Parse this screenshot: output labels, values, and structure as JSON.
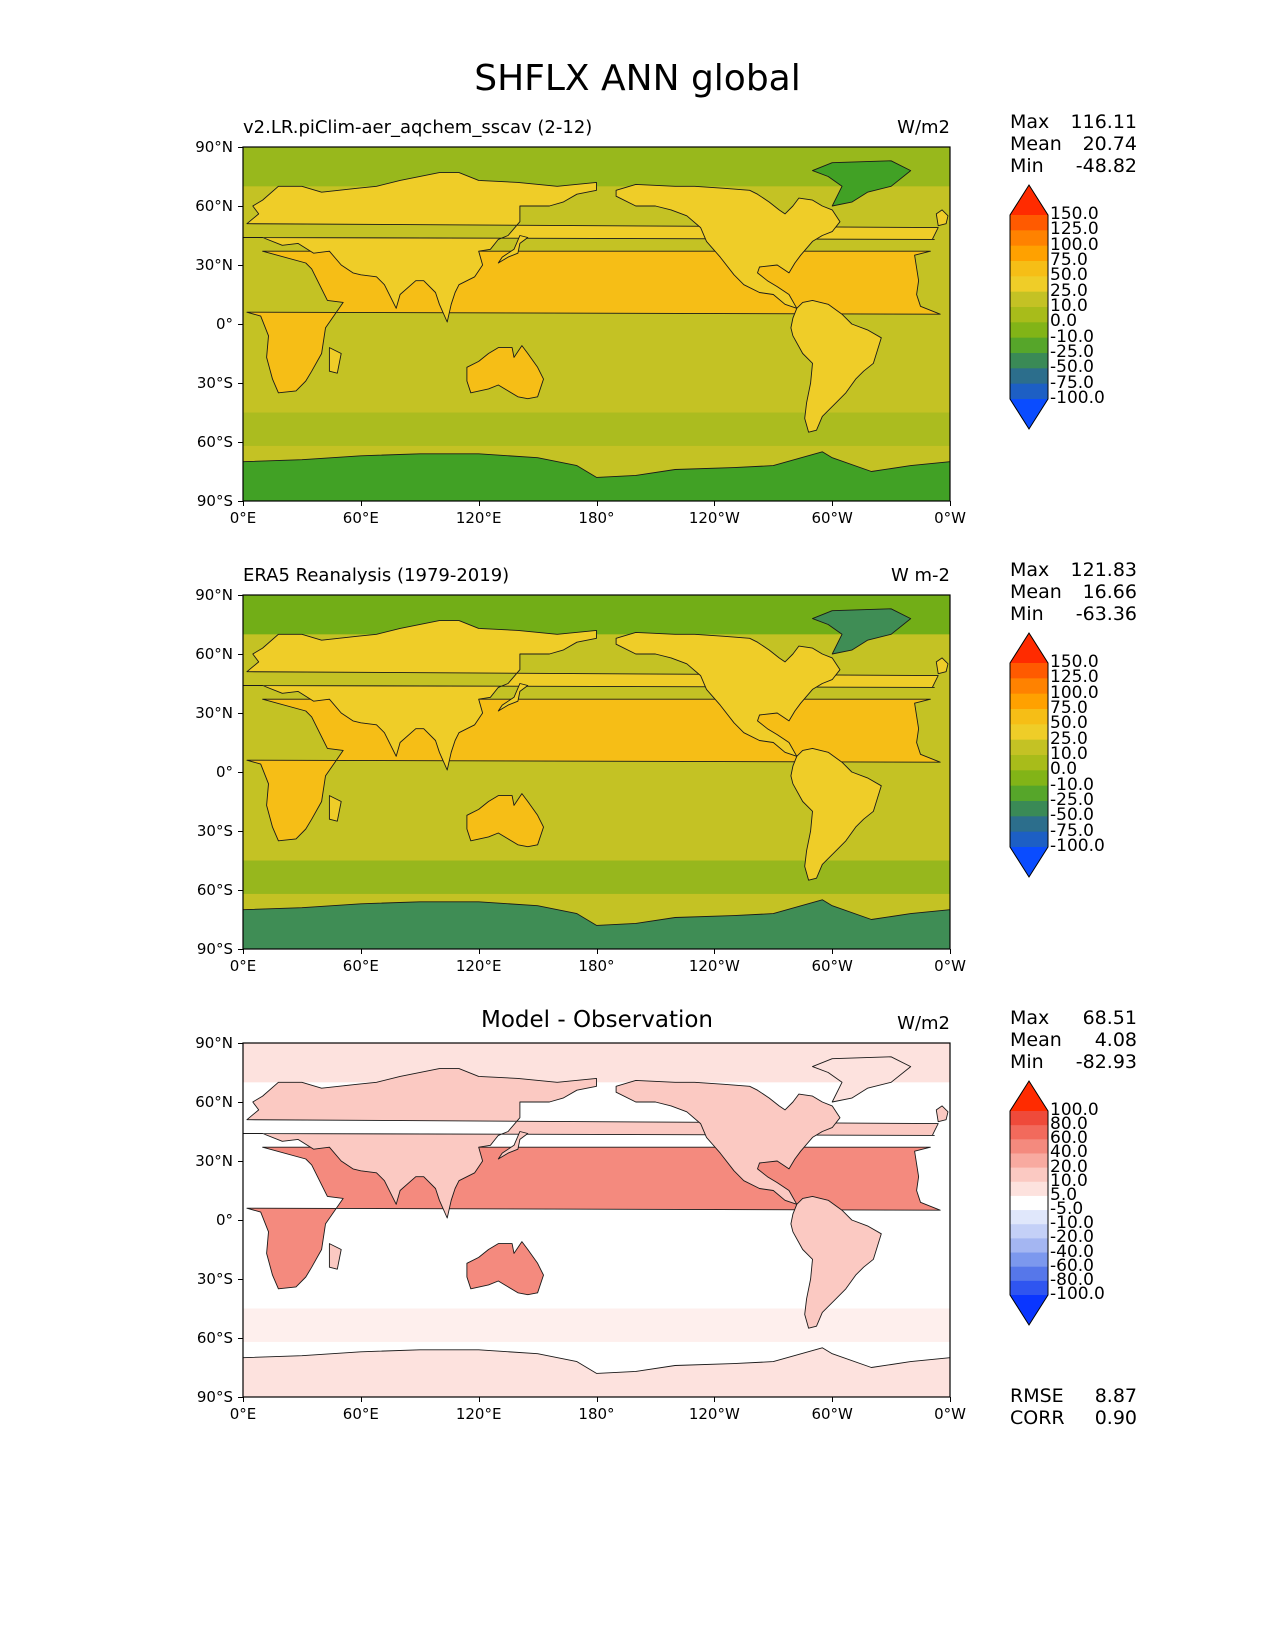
{
  "figure": {
    "title": "SHFLX ANN global"
  },
  "axes": {
    "lat_ticks": [
      "90°N",
      "60°N",
      "30°N",
      "0°",
      "30°S",
      "60°S",
      "90°S"
    ],
    "lon_ticks": [
      "0°E",
      "60°E",
      "120°E",
      "180°",
      "120°W",
      "60°W",
      "0°W"
    ]
  },
  "panels": [
    {
      "title_left": "v2.LR.piClim-aer_aqchem_sscav (2-12)",
      "title_center": "",
      "units": "W/m2",
      "stats": [
        {
          "label": "Max",
          "value": "116.11"
        },
        {
          "label": "Mean",
          "value": "20.74"
        },
        {
          "label": "Min",
          "value": "-48.82"
        }
      ],
      "colorbar_labels": [
        "150.0",
        "125.0",
        "100.0",
        "75.0",
        "50.0",
        "25.0",
        "10.0",
        "0.0",
        "-10.0",
        "-25.0",
        "-50.0",
        "-75.0",
        "-100.0"
      ],
      "colorbar_colors": [
        "#ff2b00",
        "#ff5a00",
        "#ff8200",
        "#ffa100",
        "#f6be16",
        "#efcd28",
        "#c4c224",
        "#a8bc1a",
        "#82b417",
        "#56a62a",
        "#3a8a56",
        "#2c6e8c",
        "#1d5fc4",
        "#0a4cff"
      ],
      "field_colors": {
        "ocean": "#c4c224",
        "land": "#efcd28",
        "land_hot": "#f6be16",
        "polar": "#41a125",
        "arctic": "#98b81c"
      }
    },
    {
      "title_left": "ERA5 Reanalysis (1979-2019)",
      "title_center": "",
      "units": "W m-2",
      "stats": [
        {
          "label": "Max",
          "value": "121.83"
        },
        {
          "label": "Mean",
          "value": "16.66"
        },
        {
          "label": "Min",
          "value": "-63.36"
        }
      ],
      "colorbar_labels": [
        "150.0",
        "125.0",
        "100.0",
        "75.0",
        "50.0",
        "25.0",
        "10.0",
        "0.0",
        "-10.0",
        "-25.0",
        "-50.0",
        "-75.0",
        "-100.0"
      ],
      "colorbar_colors": [
        "#ff2b00",
        "#ff5a00",
        "#ff8200",
        "#ffa100",
        "#f6be16",
        "#efcd28",
        "#c4c224",
        "#a8bc1a",
        "#82b417",
        "#56a62a",
        "#3a8a56",
        "#2c6e8c",
        "#1d5fc4",
        "#0a4cff"
      ],
      "field_colors": {
        "ocean": "#c4c224",
        "land": "#efcd28",
        "land_hot": "#f6be16",
        "polar": "#3f8d55",
        "arctic": "#72ae17"
      }
    },
    {
      "title_left": "",
      "title_center": "Model - Observation",
      "units": "W/m2",
      "stats": [
        {
          "label": "Max",
          "value": "68.51"
        },
        {
          "label": "Mean",
          "value": "4.08"
        },
        {
          "label": "Min",
          "value": "-82.93"
        }
      ],
      "colorbar_labels": [
        "100.0",
        "80.0",
        "60.0",
        "40.0",
        "20.0",
        "10.0",
        "5.0",
        "-5.0",
        "-10.0",
        "-20.0",
        "-40.0",
        "-60.0",
        "-80.0",
        "-100.0"
      ],
      "colorbar_colors": [
        "#ff2b00",
        "#ef4a3a",
        "#f26a5c",
        "#f48a7e",
        "#f8aaa0",
        "#fbc9c2",
        "#fde2de",
        "#ffffff",
        "#e0e7fb",
        "#c4d0f7",
        "#a4b6f2",
        "#7c98ee",
        "#5677ea",
        "#2f55f0",
        "#0a36ff"
      ],
      "field_colors": {
        "ocean": "#ffffff",
        "land": "#fbc9c2",
        "land_hot": "#f48a7e",
        "polar": "#fde2de",
        "arctic": "#fde2de"
      },
      "footer_stats": [
        {
          "label": "RMSE",
          "value": "8.87"
        },
        {
          "label": "CORR",
          "value": "0.90"
        }
      ]
    }
  ]
}
